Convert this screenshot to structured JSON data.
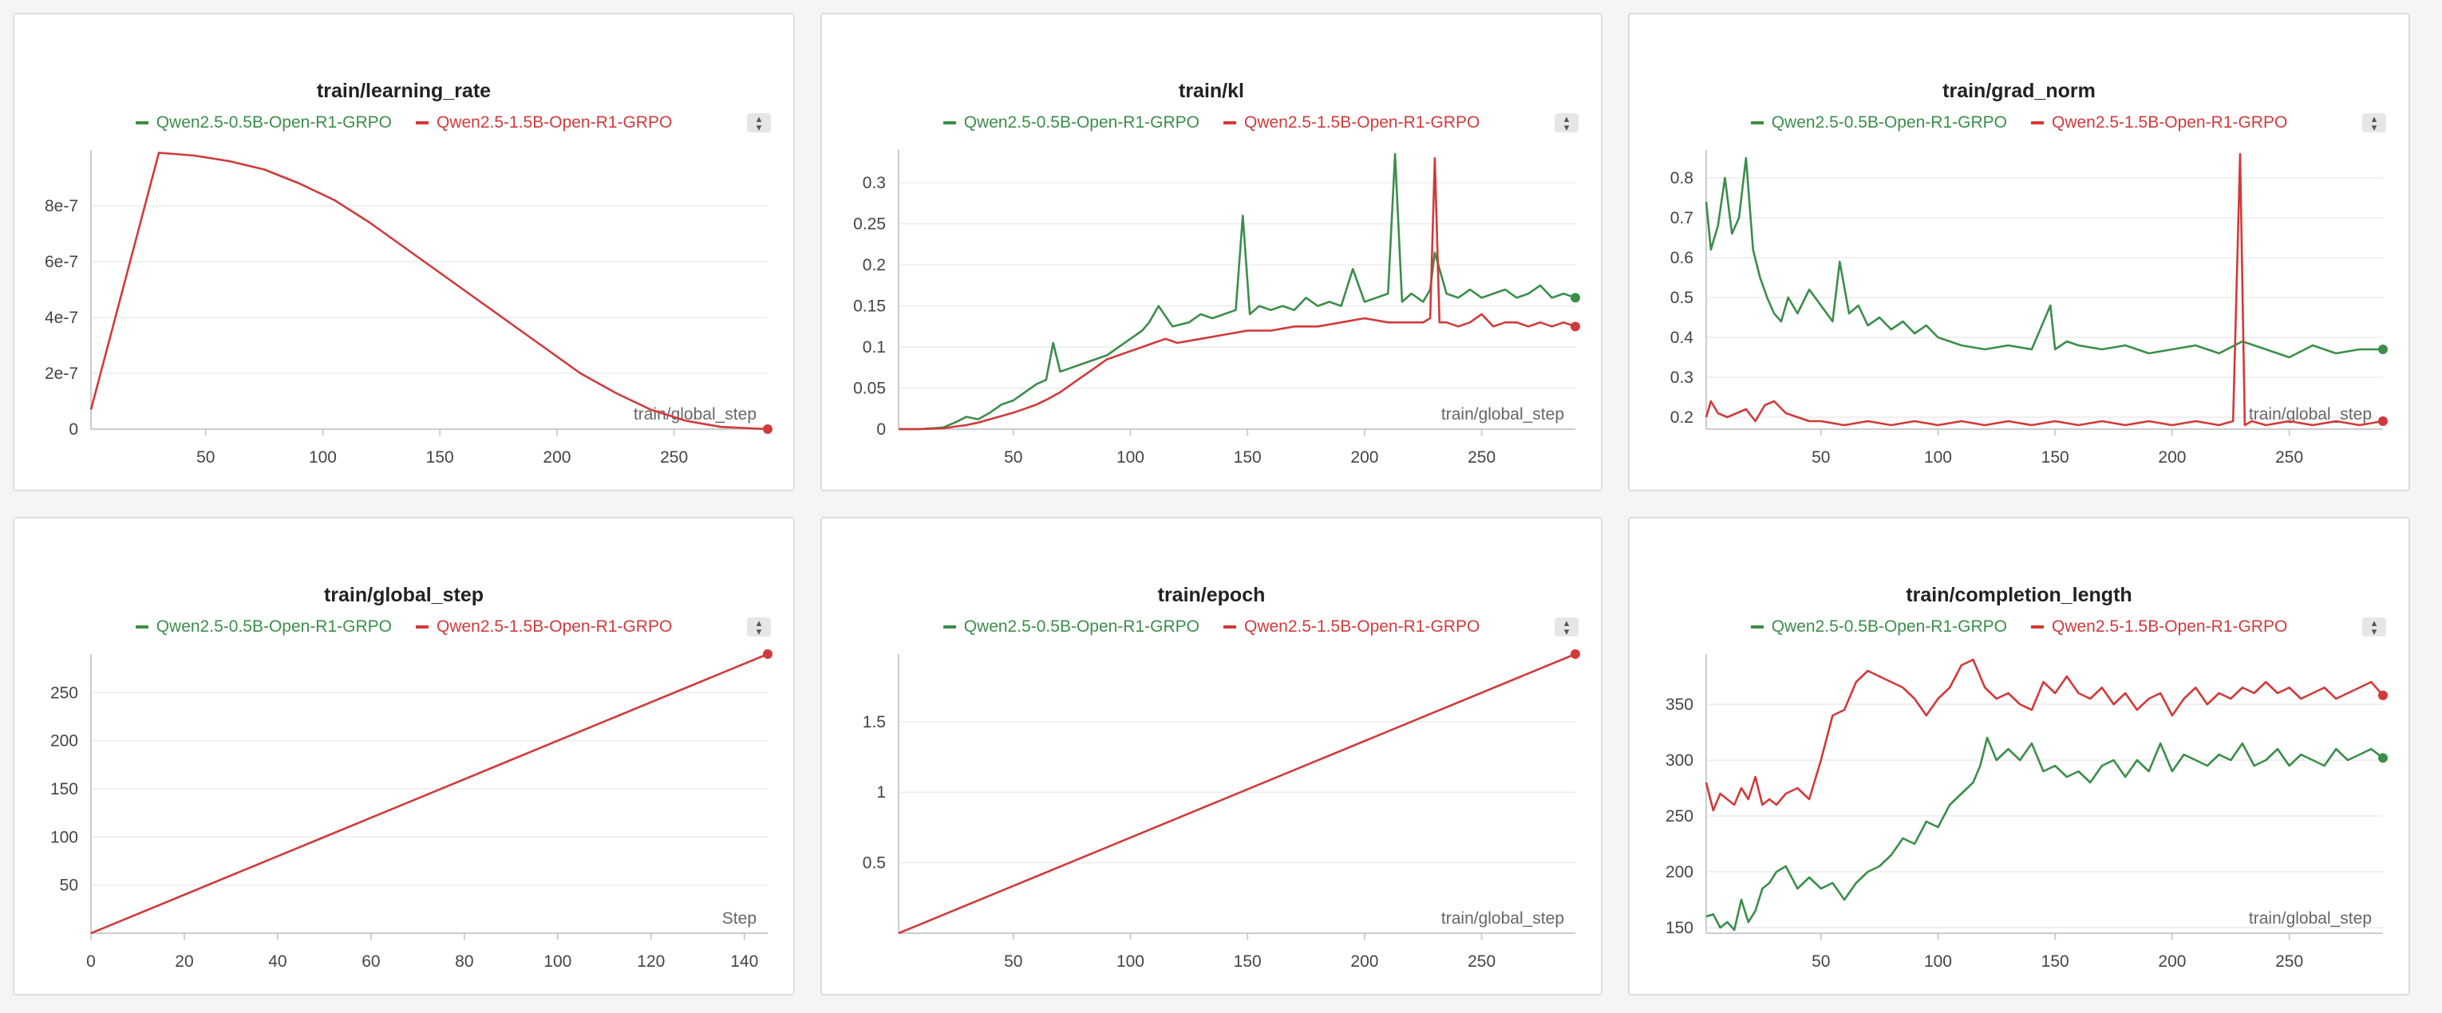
{
  "chart_data": [
    {
      "type": "line",
      "title": "train/learning_rate",
      "xlabel": "train/global_step",
      "legend": [
        "Qwen2.5-0.5B-Open-R1-GRPO",
        "Qwen2.5-1.5B-Open-R1-GRPO"
      ],
      "xlim": [
        1,
        290
      ],
      "ylim": [
        0,
        1e-06
      ],
      "xticks": [
        50,
        100,
        150,
        200,
        250
      ],
      "yticks": [
        0,
        2e-07,
        4e-07,
        6e-07,
        8e-07
      ],
      "ytick_labels": [
        "0",
        "2e-7",
        "4e-7",
        "6e-7",
        "8e-7"
      ],
      "series": [
        {
          "color": "#3b8e4a",
          "x": [],
          "y": []
        },
        {
          "color": "#d13a3a",
          "x": [
            1,
            30,
            45,
            60,
            75,
            90,
            105,
            120,
            135,
            150,
            165,
            180,
            195,
            210,
            225,
            240,
            255,
            270,
            290
          ],
          "y": [
            7e-08,
            9.9e-07,
            9.8e-07,
            9.6e-07,
            9.3e-07,
            8.8e-07,
            8.2e-07,
            7.4e-07,
            6.5e-07,
            5.6e-07,
            4.7e-07,
            3.8e-07,
            2.9e-07,
            2e-07,
            1.3e-07,
            7e-08,
            3e-08,
            8e-09,
            0
          ]
        }
      ]
    },
    {
      "type": "line",
      "title": "train/kl",
      "xlabel": "train/global_step",
      "legend": [
        "Qwen2.5-0.5B-Open-R1-GRPO",
        "Qwen2.5-1.5B-Open-R1-GRPO"
      ],
      "xlim": [
        1,
        290
      ],
      "ylim": [
        0,
        0.34
      ],
      "xticks": [
        50,
        100,
        150,
        200,
        250
      ],
      "yticks": [
        0,
        0.05,
        0.1,
        0.15,
        0.2,
        0.25,
        0.3
      ],
      "ytick_labels": [
        "0",
        "0.05",
        "0.1",
        "0.15",
        "0.2",
        "0.25",
        "0.3"
      ],
      "series": [
        {
          "color": "#3b8e4a",
          "x": [
            1,
            10,
            20,
            25,
            30,
            35,
            40,
            45,
            50,
            55,
            60,
            64,
            67,
            70,
            75,
            80,
            85,
            90,
            95,
            100,
            105,
            108,
            112,
            118,
            125,
            130,
            135,
            140,
            145,
            148,
            151,
            155,
            160,
            165,
            170,
            175,
            180,
            185,
            190,
            195,
            200,
            205,
            210,
            213,
            216,
            220,
            225,
            228,
            230,
            235,
            240,
            245,
            250,
            255,
            260,
            265,
            270,
            275,
            280,
            285,
            290
          ],
          "y": [
            0,
            0,
            0.002,
            0.008,
            0.015,
            0.012,
            0.02,
            0.03,
            0.035,
            0.045,
            0.055,
            0.06,
            0.105,
            0.07,
            0.075,
            0.08,
            0.085,
            0.09,
            0.1,
            0.11,
            0.12,
            0.13,
            0.15,
            0.125,
            0.13,
            0.14,
            0.135,
            0.14,
            0.145,
            0.26,
            0.14,
            0.15,
            0.145,
            0.15,
            0.145,
            0.16,
            0.15,
            0.155,
            0.15,
            0.195,
            0.155,
            0.16,
            0.165,
            0.335,
            0.155,
            0.165,
            0.155,
            0.17,
            0.215,
            0.165,
            0.16,
            0.17,
            0.16,
            0.165,
            0.17,
            0.16,
            0.165,
            0.175,
            0.16,
            0.165,
            0.16
          ]
        },
        {
          "color": "#d13a3a",
          "x": [
            1,
            10,
            20,
            25,
            30,
            35,
            40,
            45,
            50,
            55,
            60,
            65,
            70,
            75,
            80,
            85,
            90,
            95,
            100,
            105,
            110,
            115,
            120,
            130,
            140,
            150,
            160,
            170,
            180,
            190,
            200,
            210,
            220,
            225,
            228,
            230,
            232,
            235,
            240,
            245,
            250,
            255,
            260,
            265,
            270,
            275,
            280,
            285,
            290
          ],
          "y": [
            0,
            0,
            0.001,
            0.003,
            0.005,
            0.008,
            0.012,
            0.016,
            0.02,
            0.025,
            0.03,
            0.037,
            0.045,
            0.055,
            0.065,
            0.075,
            0.085,
            0.09,
            0.095,
            0.1,
            0.105,
            0.11,
            0.105,
            0.11,
            0.115,
            0.12,
            0.12,
            0.125,
            0.125,
            0.13,
            0.135,
            0.13,
            0.13,
            0.13,
            0.135,
            0.33,
            0.13,
            0.13,
            0.125,
            0.13,
            0.14,
            0.125,
            0.13,
            0.13,
            0.125,
            0.13,
            0.125,
            0.13,
            0.125
          ]
        }
      ]
    },
    {
      "type": "line",
      "title": "train/grad_norm",
      "xlabel": "train/global_step",
      "legend": [
        "Qwen2.5-0.5B-Open-R1-GRPO",
        "Qwen2.5-1.5B-Open-R1-GRPO"
      ],
      "xlim": [
        1,
        290
      ],
      "ylim": [
        0.17,
        0.87
      ],
      "xticks": [
        50,
        100,
        150,
        200,
        250
      ],
      "yticks": [
        0.2,
        0.3,
        0.4,
        0.5,
        0.6,
        0.7,
        0.8
      ],
      "ytick_labels": [
        "0.2",
        "0.3",
        "0.4",
        "0.5",
        "0.6",
        "0.7",
        "0.8"
      ],
      "series": [
        {
          "color": "#3b8e4a",
          "x": [
            1,
            3,
            6,
            9,
            12,
            15,
            18,
            21,
            24,
            27,
            30,
            33,
            36,
            40,
            45,
            50,
            55,
            58,
            62,
            66,
            70,
            75,
            80,
            85,
            90,
            95,
            100,
            110,
            120,
            130,
            140,
            148,
            150,
            155,
            160,
            170,
            180,
            190,
            200,
            210,
            220,
            230,
            240,
            250,
            260,
            270,
            280,
            290
          ],
          "y": [
            0.74,
            0.62,
            0.68,
            0.8,
            0.66,
            0.7,
            0.85,
            0.62,
            0.55,
            0.5,
            0.46,
            0.44,
            0.5,
            0.46,
            0.52,
            0.48,
            0.44,
            0.59,
            0.46,
            0.48,
            0.43,
            0.45,
            0.42,
            0.44,
            0.41,
            0.43,
            0.4,
            0.38,
            0.37,
            0.38,
            0.37,
            0.48,
            0.37,
            0.39,
            0.38,
            0.37,
            0.38,
            0.36,
            0.37,
            0.38,
            0.36,
            0.39,
            0.37,
            0.35,
            0.38,
            0.36,
            0.37,
            0.37
          ]
        },
        {
          "color": "#d13a3a",
          "x": [
            1,
            3,
            6,
            10,
            14,
            18,
            22,
            26,
            30,
            35,
            40,
            45,
            50,
            60,
            70,
            80,
            90,
            100,
            110,
            120,
            130,
            140,
            150,
            160,
            170,
            180,
            190,
            200,
            210,
            220,
            226,
            229,
            231,
            234,
            240,
            250,
            260,
            270,
            280,
            290
          ],
          "y": [
            0.2,
            0.24,
            0.21,
            0.2,
            0.21,
            0.22,
            0.19,
            0.23,
            0.24,
            0.21,
            0.2,
            0.19,
            0.19,
            0.18,
            0.19,
            0.18,
            0.19,
            0.18,
            0.19,
            0.18,
            0.19,
            0.18,
            0.19,
            0.18,
            0.19,
            0.18,
            0.19,
            0.18,
            0.19,
            0.18,
            0.19,
            0.86,
            0.18,
            0.19,
            0.18,
            0.19,
            0.18,
            0.19,
            0.18,
            0.19
          ]
        }
      ]
    },
    {
      "type": "line",
      "title": "train/global_step",
      "xlabel": "Step",
      "legend": [
        "Qwen2.5-0.5B-Open-R1-GRPO",
        "Qwen2.5-1.5B-Open-R1-GRPO"
      ],
      "xlim": [
        0,
        145
      ],
      "ylim": [
        0,
        290
      ],
      "xticks": [
        0,
        20,
        40,
        60,
        80,
        100,
        120,
        140
      ],
      "yticks": [
        50,
        100,
        150,
        200,
        250
      ],
      "ytick_labels": [
        "50",
        "100",
        "150",
        "200",
        "250"
      ],
      "series": [
        {
          "color": "#3b8e4a",
          "x": [],
          "y": []
        },
        {
          "color": "#d13a3a",
          "x": [
            0,
            145
          ],
          "y": [
            0,
            290
          ]
        }
      ]
    },
    {
      "type": "line",
      "title": "train/epoch",
      "xlabel": "train/global_step",
      "legend": [
        "Qwen2.5-0.5B-Open-R1-GRPO",
        "Qwen2.5-1.5B-Open-R1-GRPO"
      ],
      "xlim": [
        1,
        290
      ],
      "ylim": [
        0,
        1.98
      ],
      "xticks": [
        50,
        100,
        150,
        200,
        250
      ],
      "yticks": [
        0.5,
        1,
        1.5
      ],
      "ytick_labels": [
        "0.5",
        "1",
        "1.5"
      ],
      "series": [
        {
          "color": "#3b8e4a",
          "x": [],
          "y": []
        },
        {
          "color": "#d13a3a",
          "x": [
            1,
            290
          ],
          "y": [
            0,
            1.98
          ]
        }
      ]
    },
    {
      "type": "line",
      "title": "train/completion_length",
      "xlabel": "train/global_step",
      "legend": [
        "Qwen2.5-0.5B-Open-R1-GRPO",
        "Qwen2.5-1.5B-Open-R1-GRPO"
      ],
      "xlim": [
        1,
        290
      ],
      "ylim": [
        145,
        395
      ],
      "xticks": [
        50,
        100,
        150,
        200,
        250
      ],
      "yticks": [
        150,
        200,
        250,
        300,
        350
      ],
      "ytick_labels": [
        "150",
        "200",
        "250",
        "300",
        "350"
      ],
      "series": [
        {
          "color": "#3b8e4a",
          "x": [
            1,
            4,
            7,
            10,
            13,
            16,
            19,
            22,
            25,
            28,
            31,
            35,
            40,
            45,
            50,
            55,
            60,
            65,
            70,
            75,
            80,
            85,
            90,
            95,
            100,
            105,
            110,
            115,
            118,
            121,
            125,
            130,
            135,
            140,
            145,
            150,
            155,
            160,
            165,
            170,
            175,
            180,
            185,
            190,
            195,
            200,
            205,
            210,
            215,
            220,
            225,
            230,
            235,
            240,
            245,
            250,
            255,
            260,
            265,
            270,
            275,
            280,
            285,
            290
          ],
          "y": [
            160,
            162,
            150,
            155,
            148,
            175,
            155,
            165,
            185,
            190,
            200,
            205,
            185,
            195,
            185,
            190,
            175,
            190,
            200,
            205,
            215,
            230,
            225,
            245,
            240,
            260,
            270,
            280,
            295,
            320,
            300,
            310,
            300,
            315,
            290,
            295,
            285,
            290,
            280,
            295,
            300,
            285,
            300,
            290,
            315,
            290,
            305,
            300,
            295,
            305,
            300,
            315,
            295,
            300,
            310,
            295,
            305,
            300,
            295,
            310,
            300,
            305,
            310,
            302
          ]
        },
        {
          "color": "#d13a3a",
          "x": [
            1,
            4,
            7,
            10,
            13,
            16,
            19,
            22,
            25,
            28,
            31,
            35,
            40,
            45,
            50,
            55,
            60,
            65,
            70,
            75,
            80,
            85,
            90,
            95,
            100,
            105,
            110,
            115,
            120,
            125,
            130,
            135,
            140,
            145,
            150,
            155,
            160,
            165,
            170,
            175,
            180,
            185,
            190,
            195,
            200,
            205,
            210,
            215,
            220,
            225,
            230,
            235,
            240,
            245,
            250,
            255,
            260,
            265,
            270,
            275,
            280,
            285,
            290
          ],
          "y": [
            280,
            255,
            270,
            265,
            260,
            275,
            265,
            285,
            260,
            265,
            260,
            270,
            275,
            265,
            300,
            340,
            345,
            370,
            380,
            375,
            370,
            365,
            355,
            340,
            355,
            365,
            385,
            390,
            365,
            355,
            360,
            350,
            345,
            370,
            360,
            375,
            360,
            355,
            365,
            350,
            360,
            345,
            355,
            360,
            340,
            355,
            365,
            350,
            360,
            355,
            365,
            360,
            370,
            360,
            365,
            355,
            360,
            365,
            355,
            360,
            365,
            370,
            358
          ]
        }
      ]
    }
  ]
}
